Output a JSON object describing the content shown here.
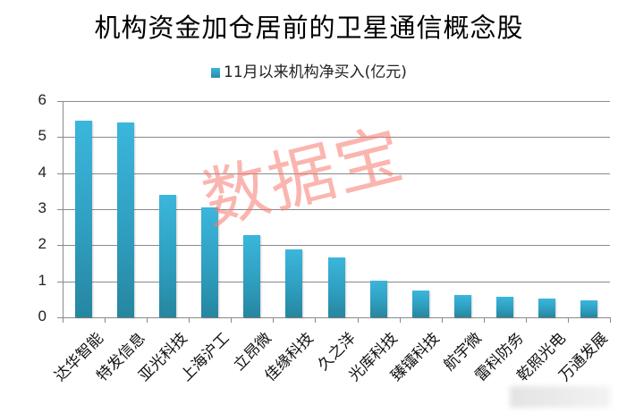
{
  "chart_data": {
    "type": "bar",
    "title": "机构资金加仓居前的卫星通信概念股",
    "legend": [
      "11月以来机构净买入(亿元)"
    ],
    "legend_position": "top",
    "xlabel": "",
    "ylabel": "",
    "ylim": [
      0,
      6
    ],
    "yticks": [
      "0",
      "1",
      "2",
      "3",
      "4",
      "5",
      "6"
    ],
    "grid": true,
    "categories": [
      "达华智能",
      "特发信息",
      "亚光科技",
      "上海沪工",
      "立昂微",
      "佳缘科技",
      "久之洋",
      "光库科技",
      "臻镭科技",
      "航宇微",
      "雷科防务",
      "乾照光电",
      "万通发展"
    ],
    "series": [
      {
        "name": "11月以来机构净买入(亿元)",
        "color": "#2fa6c8",
        "values": [
          5.46,
          5.41,
          3.4,
          3.05,
          2.28,
          1.89,
          1.66,
          1.02,
          0.74,
          0.62,
          0.57,
          0.52,
          0.47
        ]
      }
    ],
    "watermark": "数据宝"
  }
}
